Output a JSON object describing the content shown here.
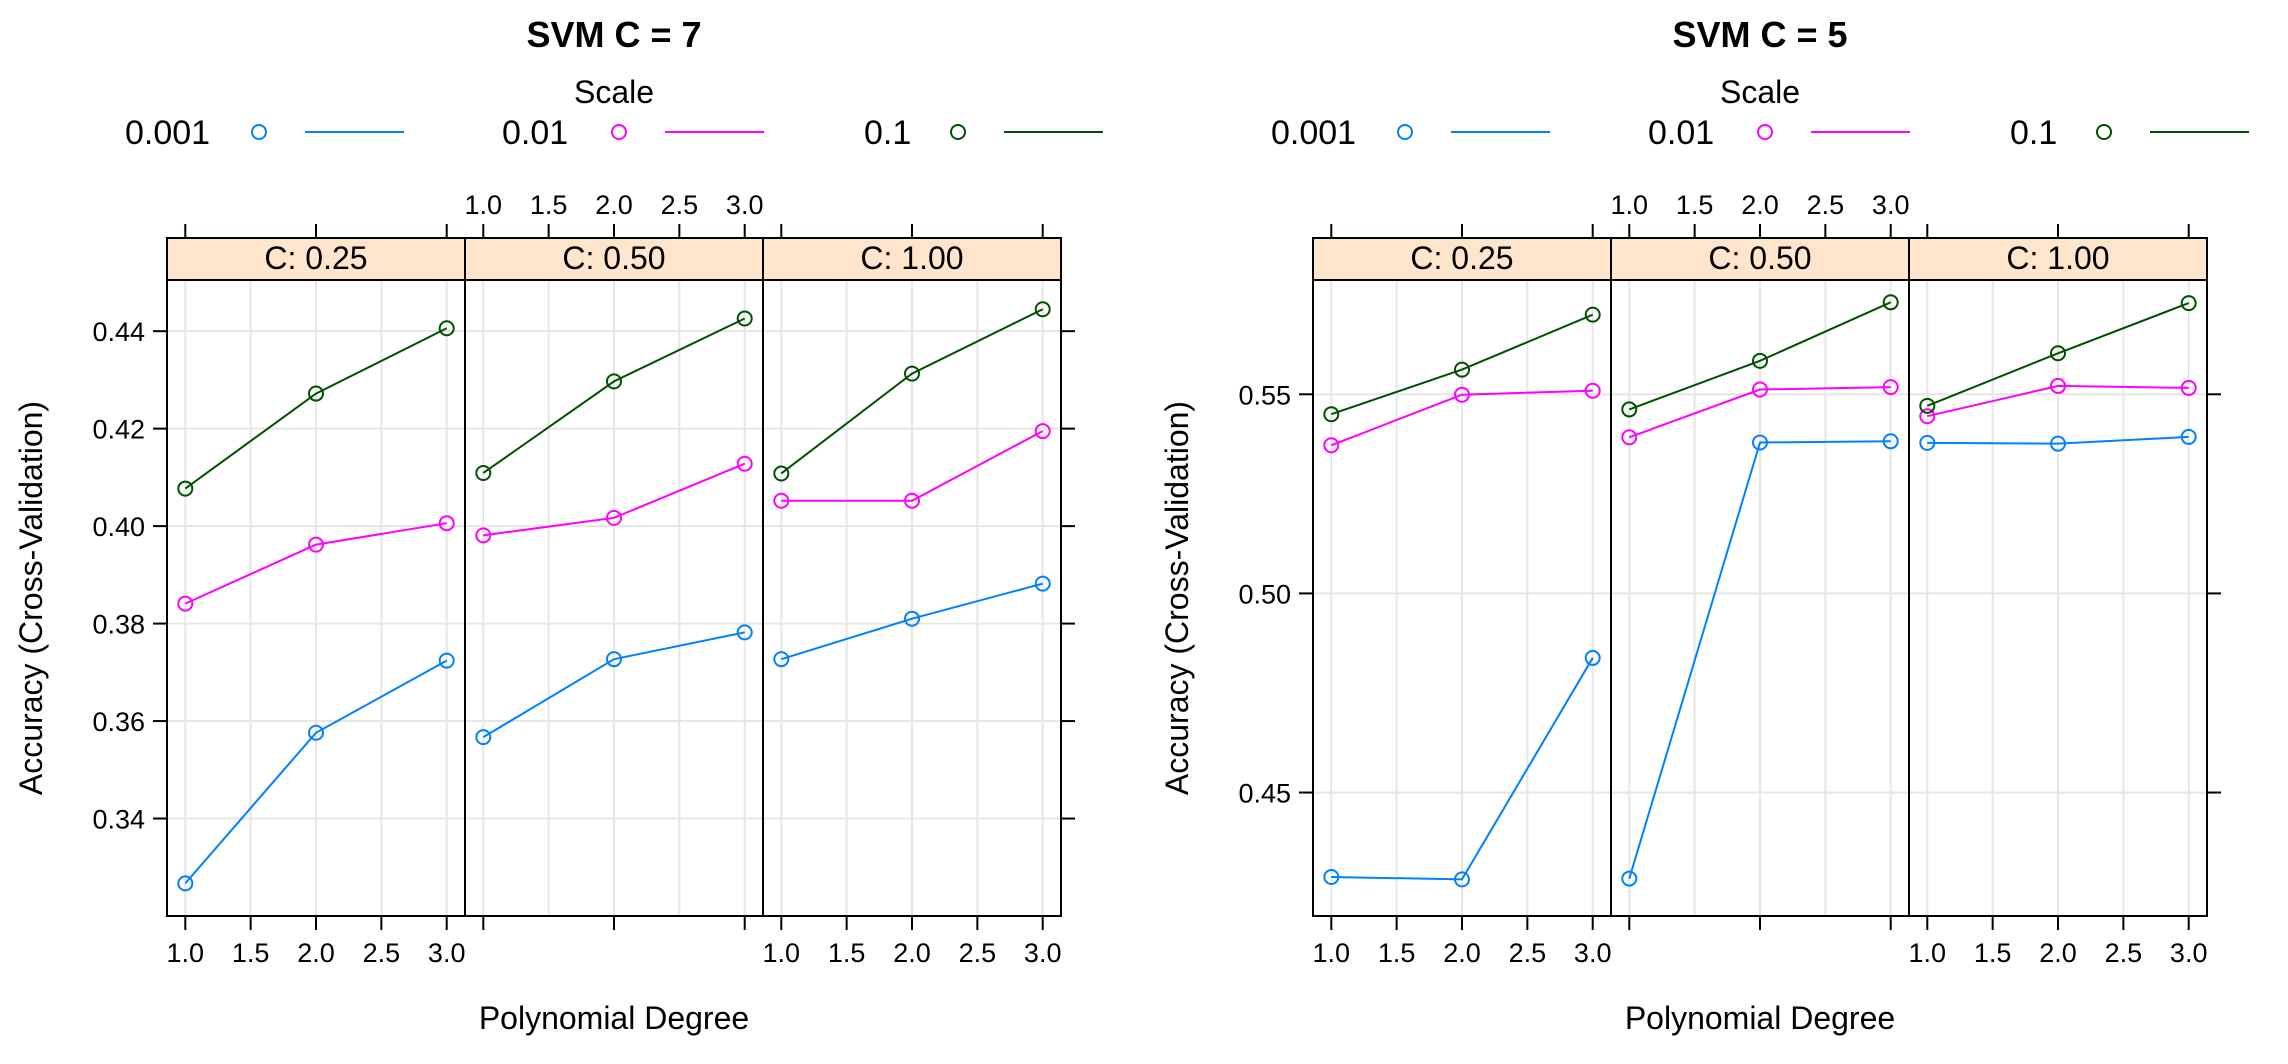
{
  "chart_data": [
    {
      "type": "line",
      "title": "SVM C = 7",
      "legend_title": "Scale",
      "legend_position": "top",
      "xlabel": "Polynomial Degree",
      "ylabel": "Accuracy (Cross-Validation)",
      "x": [
        1.0,
        2.0,
        3.0
      ],
      "x_ticks": [
        1.0,
        1.5,
        2.0,
        2.5,
        3.0
      ],
      "x_tick_labels": [
        "1.0",
        "1.5",
        "2.0",
        "2.5",
        "3.0"
      ],
      "xlim": [
        0.86,
        3.14
      ],
      "y_ticks": [
        0.34,
        0.36,
        0.38,
        0.4,
        0.42,
        0.44
      ],
      "y_tick_labels": [
        "0.34",
        "0.36",
        "0.38",
        "0.40",
        "0.42",
        "0.44"
      ],
      "ylim": [
        0.32,
        0.4505
      ],
      "grid": true,
      "panels": [
        {
          "label": "C: 0.25",
          "series": [
            {
              "name": "0.001",
              "values": [
                0.3267,
                0.3576,
                0.3724
              ]
            },
            {
              "name": "0.01",
              "values": [
                0.3841,
                0.3962,
                0.4006
              ]
            },
            {
              "name": "0.1",
              "values": [
                0.4077,
                0.4272,
                0.4406
              ]
            }
          ]
        },
        {
          "label": "C: 0.50",
          "series": [
            {
              "name": "0.001",
              "values": [
                0.3567,
                0.3727,
                0.3782
              ]
            },
            {
              "name": "0.01",
              "values": [
                0.3981,
                0.4017,
                0.4128
              ]
            },
            {
              "name": "0.1",
              "values": [
                0.4109,
                0.4297,
                0.4426
              ]
            }
          ]
        },
        {
          "label": "C: 1.00",
          "series": [
            {
              "name": "0.001",
              "values": [
                0.3727,
                0.381,
                0.3882
              ]
            },
            {
              "name": "0.01",
              "values": [
                0.4052,
                0.4052,
                0.4195
              ]
            },
            {
              "name": "0.1",
              "values": [
                0.4108,
                0.4313,
                0.4445
              ]
            }
          ]
        }
      ]
    },
    {
      "type": "line",
      "title": "SVM C = 5",
      "legend_title": "Scale",
      "legend_position": "top",
      "xlabel": "Polynomial Degree",
      "ylabel": "Accuracy (Cross-Validation)",
      "x": [
        1.0,
        2.0,
        3.0
      ],
      "x_ticks": [
        1.0,
        1.5,
        2.0,
        2.5,
        3.0
      ],
      "x_tick_labels": [
        "1.0",
        "1.5",
        "2.0",
        "2.5",
        "3.0"
      ],
      "xlim": [
        0.86,
        3.14
      ],
      "y_ticks": [
        0.45,
        0.5,
        0.55
      ],
      "y_tick_labels": [
        "0.45",
        "0.50",
        "0.55"
      ],
      "ylim": [
        0.419,
        0.5787
      ],
      "grid": true,
      "panels": [
        {
          "label": "C: 0.25",
          "series": [
            {
              "name": "0.001",
              "values": [
                0.4288,
                0.4282,
                0.4838
              ]
            },
            {
              "name": "0.01",
              "values": [
                0.5372,
                0.5499,
                0.5509
              ]
            },
            {
              "name": "0.1",
              "values": [
                0.545,
                0.5562,
                0.57
              ]
            }
          ]
        },
        {
          "label": "C: 0.50",
          "series": [
            {
              "name": "0.001",
              "values": [
                0.4284,
                0.5379,
                0.5382
              ]
            },
            {
              "name": "0.01",
              "values": [
                0.5392,
                0.5512,
                0.5518
              ]
            },
            {
              "name": "0.1",
              "values": [
                0.5462,
                0.5584,
                0.5731
              ]
            }
          ]
        },
        {
          "label": "C: 1.00",
          "series": [
            {
              "name": "0.001",
              "values": [
                0.5378,
                0.5376,
                0.5393
              ]
            },
            {
              "name": "0.01",
              "values": [
                0.5445,
                0.5521,
                0.5516
              ]
            },
            {
              "name": "0.1",
              "values": [
                0.5471,
                0.5603,
                0.5729
              ]
            }
          ]
        }
      ]
    }
  ],
  "legend": [
    {
      "name": "0.001",
      "color": "#0080ff"
    },
    {
      "name": "0.01",
      "color": "#ff00ff"
    },
    {
      "name": "0.1",
      "color": "#005000"
    }
  ],
  "strip_color": "#ffe5cc"
}
